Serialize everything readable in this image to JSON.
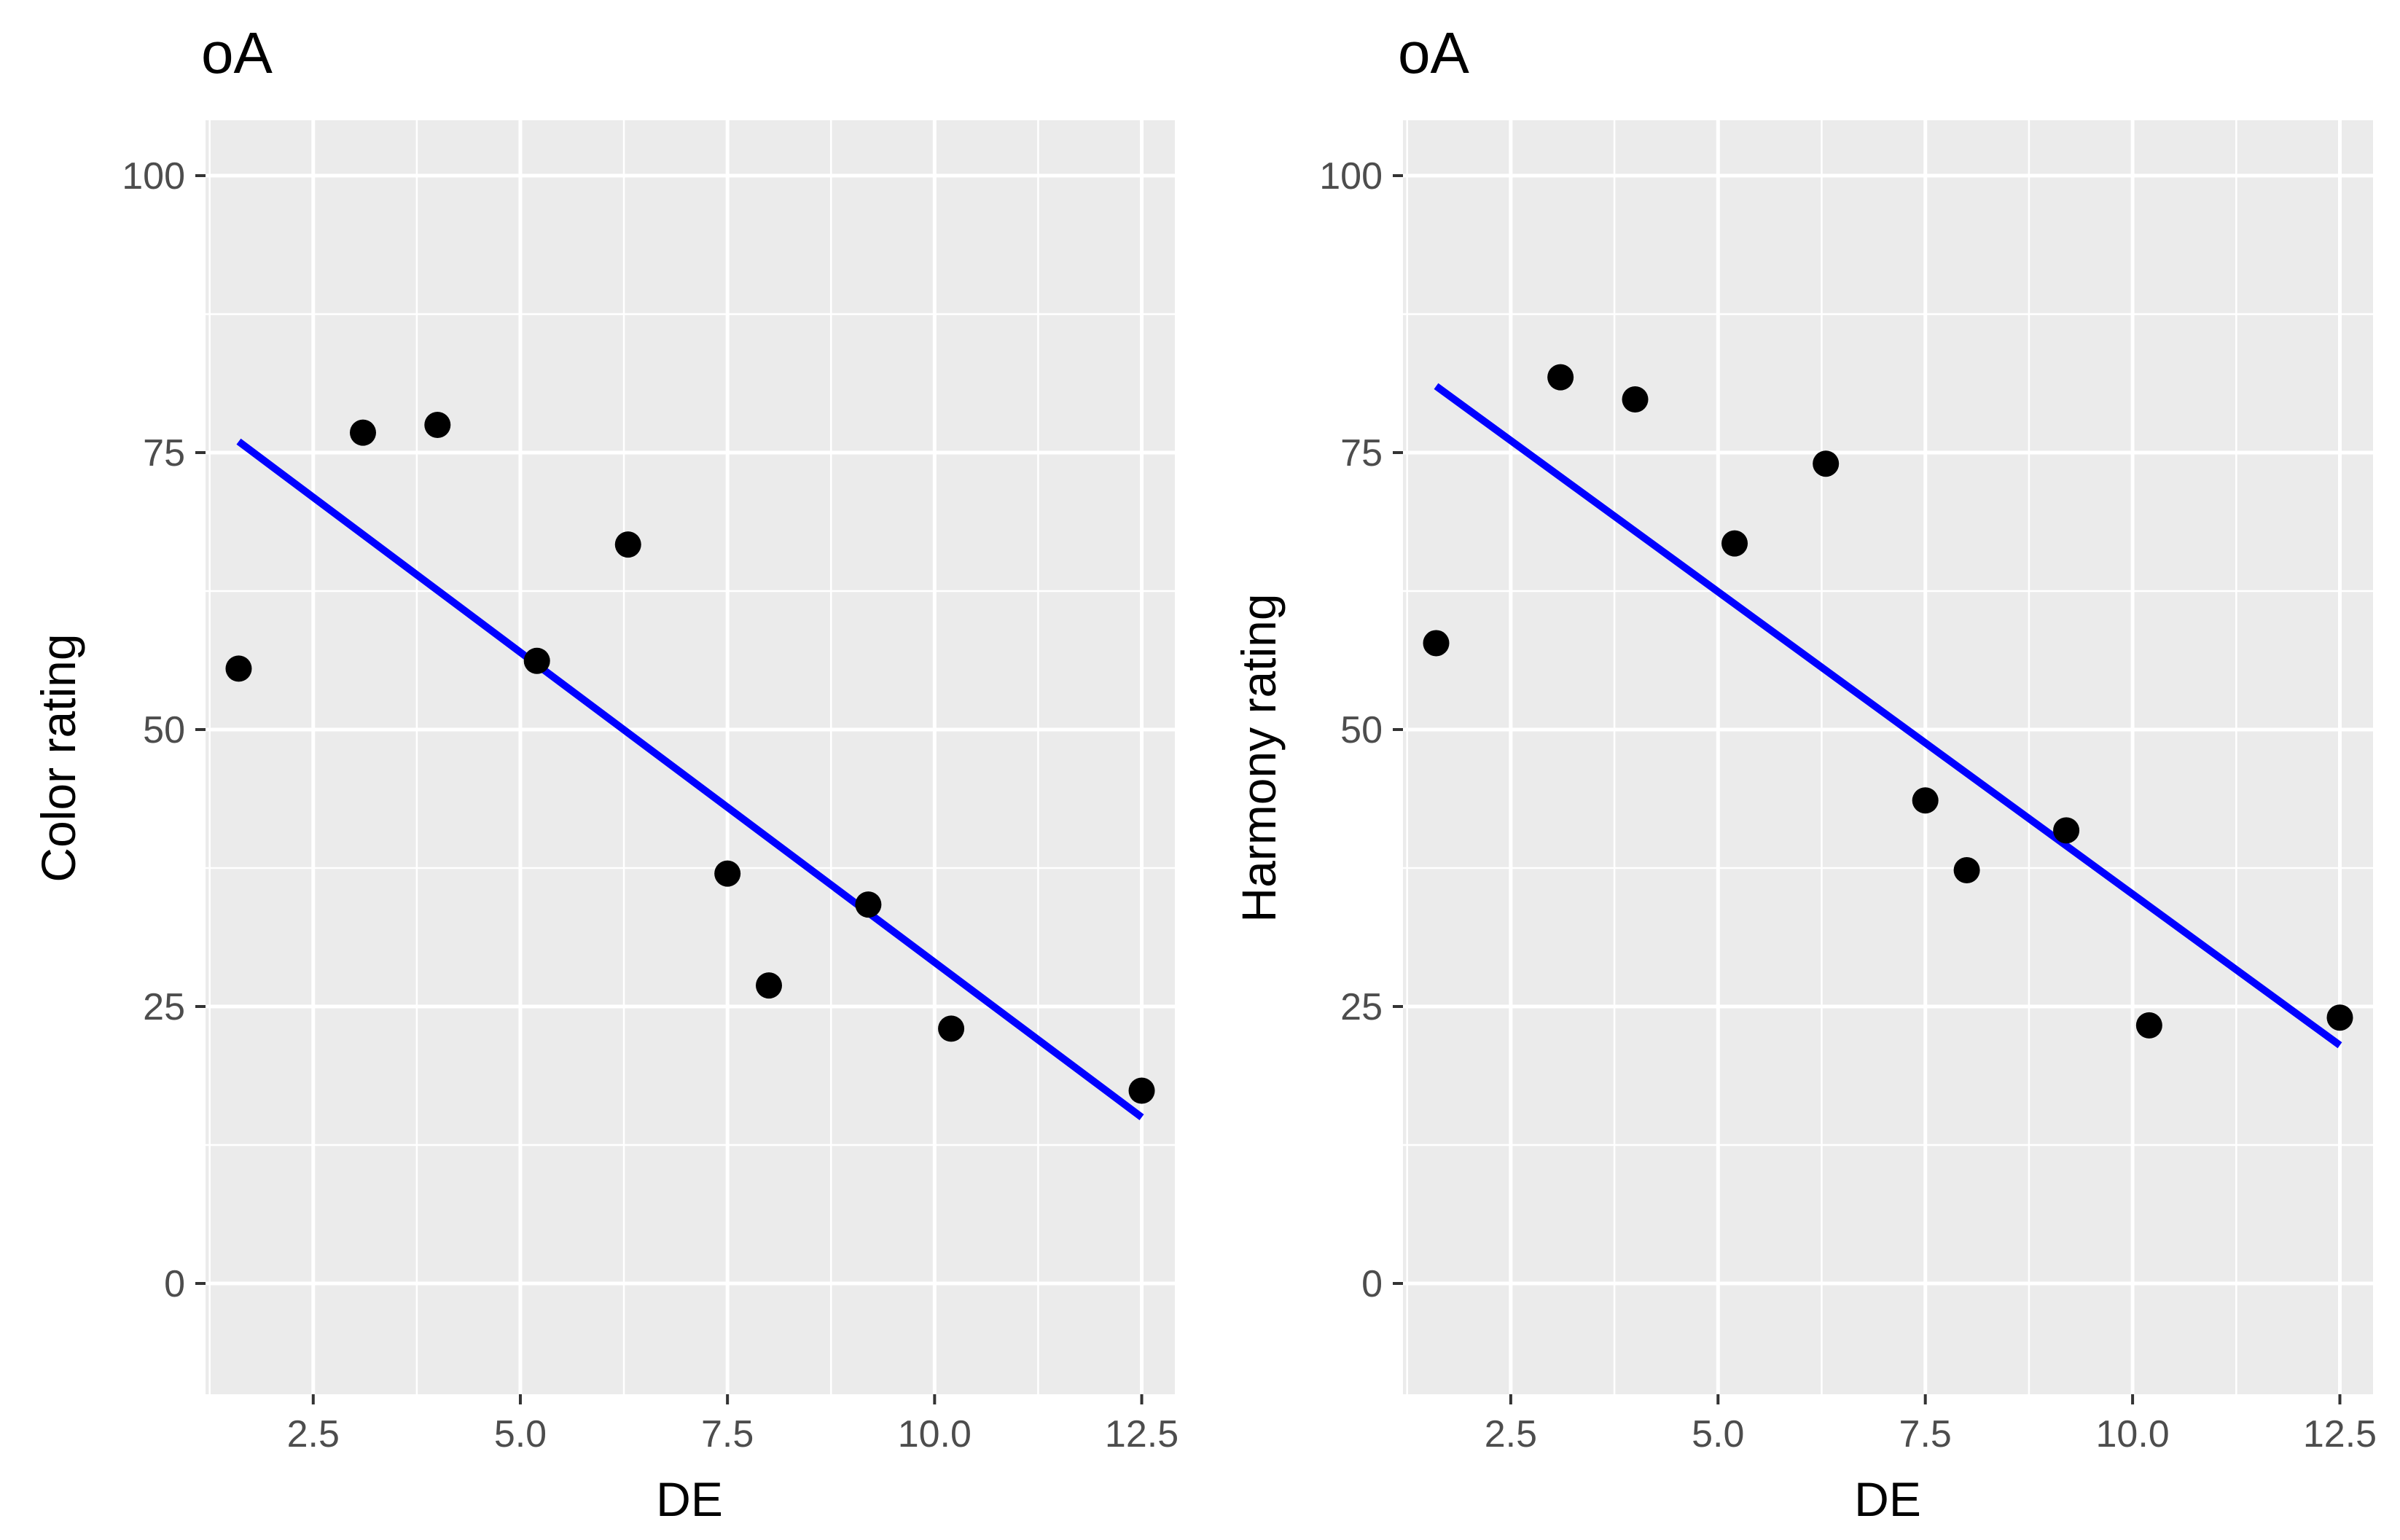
{
  "chart_data": [
    {
      "type": "scatter",
      "title": "oA",
      "xlabel": "DE",
      "ylabel": "Color rating",
      "xlim": [
        1.2,
        12.9
      ],
      "ylim": [
        -10,
        105
      ],
      "x_ticks": [
        "2.5",
        "5.0",
        "7.5",
        "10.0",
        "12.5"
      ],
      "y_ticks": [
        "0",
        "25",
        "50",
        "75",
        "100"
      ],
      "grid": true,
      "points": [
        {
          "x": 1.6,
          "y": 55.5
        },
        {
          "x": 3.1,
          "y": 76.8
        },
        {
          "x": 4.0,
          "y": 77.5
        },
        {
          "x": 5.2,
          "y": 56.2
        },
        {
          "x": 6.3,
          "y": 66.7
        },
        {
          "x": 7.5,
          "y": 37.0
        },
        {
          "x": 8.0,
          "y": 26.9
        },
        {
          "x": 9.2,
          "y": 34.2
        },
        {
          "x": 10.2,
          "y": 23.0
        },
        {
          "x": 12.5,
          "y": 17.4
        }
      ],
      "fit_line": {
        "color": "#0000ff",
        "x": [
          1.6,
          12.5
        ],
        "y": [
          76.0,
          15.0
        ]
      }
    },
    {
      "type": "scatter",
      "title": "oA",
      "xlabel": "DE",
      "ylabel": "Harmony rating",
      "xlim": [
        1.2,
        12.9
      ],
      "ylim": [
        -10,
        105
      ],
      "x_ticks": [
        "2.5",
        "5.0",
        "7.5",
        "10.0",
        "12.5"
      ],
      "y_ticks": [
        "0",
        "25",
        "50",
        "75",
        "100"
      ],
      "grid": true,
      "points": [
        {
          "x": 1.6,
          "y": 57.8
        },
        {
          "x": 3.1,
          "y": 81.8
        },
        {
          "x": 4.0,
          "y": 79.8
        },
        {
          "x": 5.2,
          "y": 66.8
        },
        {
          "x": 6.3,
          "y": 74.0
        },
        {
          "x": 7.5,
          "y": 43.6
        },
        {
          "x": 8.0,
          "y": 37.3
        },
        {
          "x": 9.2,
          "y": 40.9
        },
        {
          "x": 10.2,
          "y": 23.3
        },
        {
          "x": 12.5,
          "y": 24.0
        }
      ],
      "fit_line": {
        "color": "#0000ff",
        "x": [
          1.6,
          12.5
        ],
        "y": [
          81.0,
          21.5
        ]
      }
    }
  ]
}
